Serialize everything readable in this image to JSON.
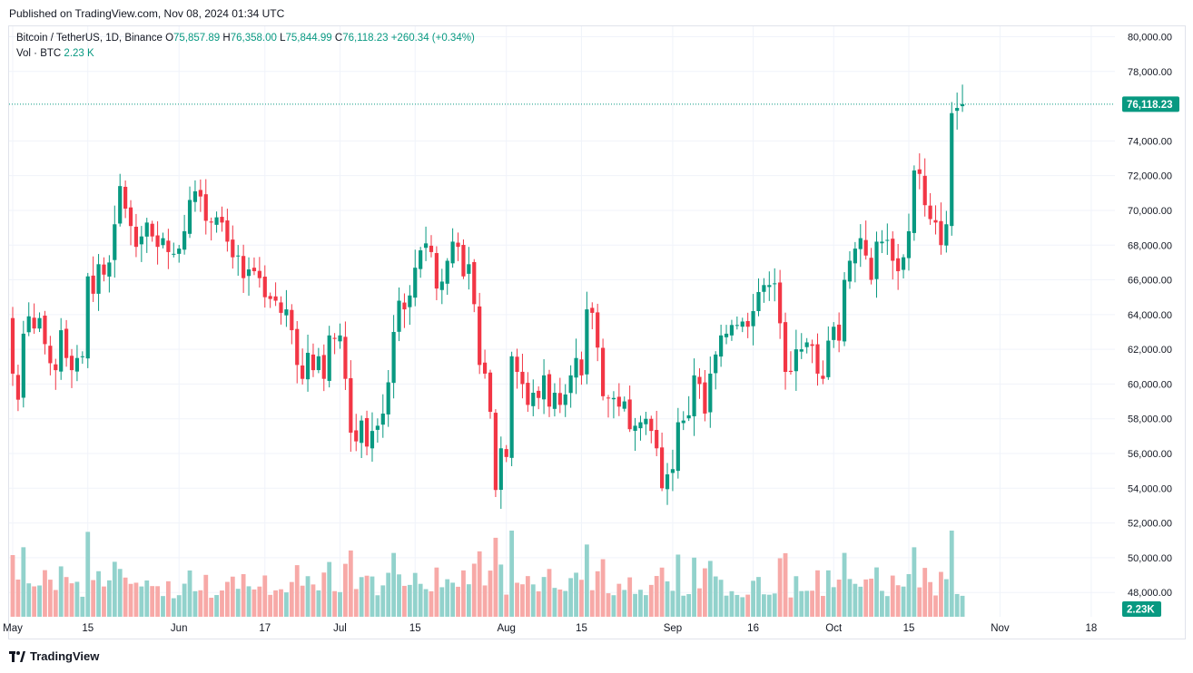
{
  "header": {
    "published": "Published on TradingView.com, Nov 08, 2024 01:34 UTC"
  },
  "legend": {
    "symbol": "Bitcoin / TetherUS, 1D, Binance",
    "o_label": "O",
    "o_value": "75,857.89",
    "h_label": "H",
    "h_value": "76,358.00",
    "l_label": "L",
    "l_value": "75,844.99",
    "c_label": "C",
    "c_value": "76,118.23",
    "change": "+260.34 (+0.34%)",
    "vol_label": "Vol · BTC",
    "vol_value": "2.23 K"
  },
  "last_price_label": "76,118.23",
  "last_volume_label": "2.23K",
  "footer": {
    "brand": "TradingView"
  },
  "colors": {
    "up": "#089981",
    "down": "#f23645",
    "up_vol": "#92d2cc",
    "down_vol": "#f7a9a7",
    "grid": "#f0f3fa",
    "axis_text": "#131722"
  },
  "chart_data": {
    "type": "candlestick",
    "interval": "1D",
    "start_date": "2024-05-01",
    "ylim": [
      46600,
      80600
    ],
    "y_ticks": [
      "80,000.00",
      "78,000.00",
      "74,000.00",
      "72,000.00",
      "70,000.00",
      "68,000.00",
      "66,000.00",
      "64,000.00",
      "62,000.00",
      "60,000.00",
      "58,000.00",
      "56,000.00",
      "54,000.00",
      "52,000.00",
      "50,000.00",
      "48,000.00"
    ],
    "y_tick_values": [
      80000,
      78000,
      74000,
      72000,
      70000,
      68000,
      66000,
      64000,
      62000,
      60000,
      58000,
      56000,
      54000,
      52000,
      50000,
      48000
    ],
    "x_ticks": [
      {
        "label": "May",
        "day": 0
      },
      {
        "label": "15",
        "day": 14
      },
      {
        "label": "Jun",
        "day": 31
      },
      {
        "label": "17",
        "day": 47
      },
      {
        "label": "Jul",
        "day": 61
      },
      {
        "label": "15",
        "day": 75
      },
      {
        "label": "Aug",
        "day": 92
      },
      {
        "label": "15",
        "day": 106
      },
      {
        "label": "Sep",
        "day": 123
      },
      {
        "label": "16",
        "day": 138
      },
      {
        "label": "Oct",
        "day": 153
      },
      {
        "label": "15",
        "day": 167
      },
      {
        "label": "Nov",
        "day": 184
      },
      {
        "label": "18",
        "day": 201
      }
    ],
    "last_price": 76118.23,
    "closes": [
      60600,
      59100,
      62900,
      63900,
      63200,
      63800,
      62300,
      61200,
      60800,
      63100,
      61500,
      60800,
      61500,
      61600,
      66200,
      65200,
      66900,
      66300,
      67000,
      69200,
      71400,
      70100,
      69100,
      67900,
      68500,
      69300,
      68500,
      67900,
      68400,
      67600,
      67500,
      67800,
      68800,
      70600,
      71100,
      70800,
      69400,
      69300,
      69600,
      69300,
      68200,
      67300,
      67400,
      66100,
      66600,
      66500,
      66100,
      65000,
      64900,
      64800,
      64100,
      64300,
      63100,
      61100,
      60300,
      61800,
      60800,
      61600,
      60300,
      62800,
      62600,
      62800,
      60300,
      57200,
      56700,
      57900,
      56400,
      57300,
      57600,
      58300,
      60100,
      63000,
      64800,
      64300,
      65100,
      66700,
      67700,
      68100,
      67600,
      65500,
      65900,
      67100,
      68200,
      67900,
      66200,
      66900,
      64600,
      61100,
      60600,
      58400,
      53900,
      56300,
      55800,
      61600,
      60700,
      60000,
      58800,
      59500,
      59200,
      60500,
      58700,
      59500,
      58800,
      59400,
      60500,
      61500,
      60500,
      64300,
      64100,
      62100,
      59300,
      59200,
      59200,
      58700,
      59000,
      57400,
      57600,
      57800,
      58000,
      57300,
      56300,
      54000,
      54800,
      55100,
      57800,
      57900,
      58200,
      60500,
      60000,
      58300,
      60600,
      61700,
      62800,
      62900,
      63400,
      63400,
      63600,
      63300,
      64200,
      65300,
      65700,
      65700,
      65800,
      63500,
      60700,
      60700,
      62000,
      62000,
      62400,
      62200,
      60600,
      60300,
      62500,
      63300,
      62500,
      66000,
      67100,
      67800,
      68400,
      67400,
      66000,
      68200,
      68200,
      68300,
      67100,
      66500,
      67300,
      68800,
      72300,
      72100,
      70300,
      69500,
      69300,
      68000,
      69200,
      75600,
      75900,
      76118
    ]
  }
}
